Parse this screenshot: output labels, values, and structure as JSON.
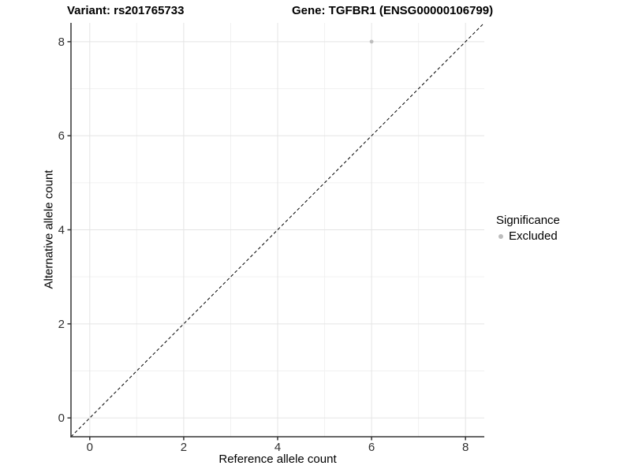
{
  "chart_data": {
    "type": "scatter",
    "title_variant": "Variant: rs201765733",
    "title_gene": "Gene: TGFBR1 (ENSG00000106799)",
    "xlabel": "Reference allele count",
    "ylabel": "Alternative allele count",
    "xlim": [
      -0.4,
      8.4
    ],
    "ylim": [
      -0.4,
      8.4
    ],
    "x_ticks": [
      0,
      2,
      4,
      6,
      8
    ],
    "y_ticks": [
      0,
      2,
      4,
      6,
      8
    ],
    "x_minor_gridlines": [
      1,
      3,
      5,
      7
    ],
    "y_minor_gridlines": [
      1,
      3,
      5,
      7
    ],
    "grid": true,
    "legend_position": "right",
    "series": [
      {
        "name": "Excluded",
        "color": "#bdbdbd",
        "points": [
          {
            "x": 6,
            "y": 8
          }
        ]
      }
    ],
    "reference_line": {
      "kind": "identity",
      "style": "dashed",
      "color": "#000000"
    }
  },
  "legend": {
    "title": "Significance",
    "items": [
      {
        "label": "Excluded",
        "color": "#bdbdbd"
      }
    ]
  },
  "colors": {
    "background": "#ffffff",
    "grid_major": "#e4e4e4",
    "grid_minor": "#f1f1f1",
    "axis_line": "#333333",
    "tick_label": "#303030",
    "point": "#bdbdbd"
  }
}
